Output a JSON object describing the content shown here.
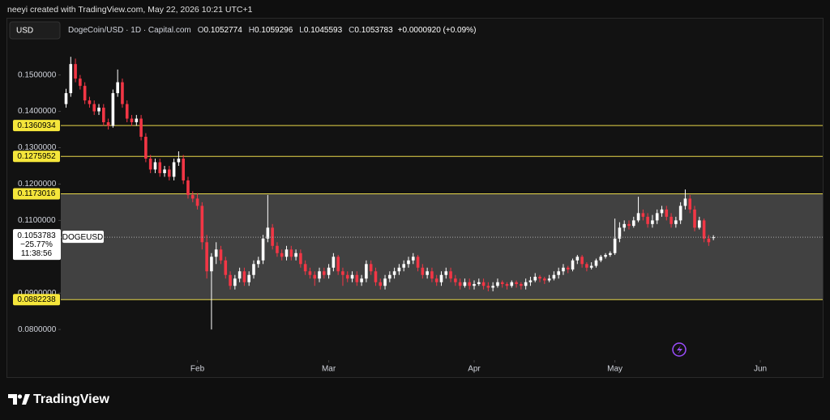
{
  "header": {
    "credit": "neeyi created with TradingView.com, May 22, 2026 10:21 UTC+1",
    "currency": "USD",
    "symbol": "DogeCoin/USD · 1D · Capital.com",
    "ohlc_labels": [
      "O",
      "H",
      "L",
      "C"
    ],
    "change": "+0.0000920 (+0.09%)"
  },
  "footer": {
    "brand": "TradingView"
  },
  "chart_data": {
    "type": "candlestick",
    "up_color": "#ffffff",
    "down_color": "#f23645",
    "level_color": "#e8d84a",
    "ylim": [
      0.0669,
      0.1655
    ],
    "yticks": [
      {
        "value": 0.15,
        "label": "0.1500000"
      },
      {
        "value": 0.14,
        "label": "0.1400000"
      },
      {
        "value": 0.13,
        "label": "0.1300000"
      },
      {
        "value": 0.12,
        "label": "0.1200000"
      },
      {
        "value": 0.11,
        "label": "0.1100000"
      },
      {
        "value": 0.09,
        "label": "0.0900000"
      },
      {
        "value": 0.08,
        "label": "0.0800000"
      }
    ],
    "xlim": [
      -12.7,
      161.3
    ],
    "xticks": [
      {
        "value": 28,
        "label": "Feb"
      },
      {
        "value": 56,
        "label": "Mar"
      },
      {
        "value": 87,
        "label": "Apr"
      },
      {
        "value": 117,
        "label": "May"
      },
      {
        "value": 148,
        "label": "Jun"
      }
    ],
    "grid": false,
    "levels": [
      {
        "value": 0.1360934,
        "label": "0.1360934"
      },
      {
        "value": 0.1275952,
        "label": "0.1275952"
      },
      {
        "value": 0.1173016,
        "label": "0.1173016"
      },
      {
        "value": 0.0882238,
        "label": "0.0882238"
      }
    ],
    "last_price": {
      "symbol": "DOGEUSD",
      "change": "−25.77%",
      "countdown": "11:38:56"
    },
    "open": [
      0.142,
      0.145,
      0.153,
      0.149,
      0.147,
      0.143,
      0.142,
      0.14,
      0.141,
      0.137,
      0.136,
      0.145,
      0.148,
      0.142,
      0.138,
      0.137,
      0.138,
      0.133,
      0.127,
      0.124,
      0.126,
      0.123,
      0.124,
      0.122,
      0.126,
      0.127,
      0.121,
      0.117,
      0.116,
      0.114,
      0.104,
      0.096,
      0.1,
      0.102,
      0.099,
      0.095,
      0.092,
      0.094,
      0.096,
      0.093,
      0.095,
      0.098,
      0.099,
      0.105,
      0.108,
      0.103,
      0.101,
      0.1,
      0.102,
      0.1,
      0.101,
      0.098,
      0.096,
      0.095,
      0.094,
      0.096,
      0.095,
      0.097,
      0.1,
      0.096,
      0.095,
      0.094,
      0.095,
      0.093,
      0.094,
      0.098,
      0.096,
      0.093,
      0.092,
      0.094,
      0.095,
      0.096,
      0.097,
      0.098,
      0.099,
      0.1,
      0.097,
      0.095,
      0.096,
      0.094,
      0.093,
      0.095,
      0.096,
      0.094,
      0.093,
      0.092,
      0.093,
      0.092,
      0.0925,
      0.093,
      0.092,
      0.0915,
      0.092,
      0.093,
      0.0925,
      0.092,
      0.093,
      0.0925,
      0.092,
      0.093,
      0.0935,
      0.0945,
      0.094,
      0.0935,
      0.094,
      0.095,
      0.096,
      0.097,
      0.0965,
      0.099,
      0.1,
      0.098,
      0.097,
      0.0975,
      0.099,
      0.1,
      0.1005,
      0.101,
      0.105,
      0.108,
      0.109,
      0.1085,
      0.11,
      0.112,
      0.111,
      0.109,
      0.11,
      0.112,
      0.113,
      0.111,
      0.109,
      0.11,
      0.114,
      0.116,
      0.113,
      0.108,
      0.11,
      0.105,
      0.1052774
    ],
    "high": [
      0.1462,
      0.155,
      0.1545,
      0.15,
      0.148,
      0.144,
      0.143,
      0.142,
      0.142,
      0.138,
      0.146,
      0.1515,
      0.149,
      0.143,
      0.139,
      0.139,
      0.139,
      0.134,
      0.128,
      0.127,
      0.127,
      0.125,
      0.125,
      0.127,
      0.129,
      0.128,
      0.122,
      0.118,
      0.1175,
      0.115,
      0.106,
      0.101,
      0.104,
      0.103,
      0.1,
      0.096,
      0.095,
      0.097,
      0.097,
      0.096,
      0.099,
      0.1,
      0.106,
      0.117,
      0.109,
      0.104,
      0.102,
      0.103,
      0.103,
      0.102,
      0.102,
      0.099,
      0.097,
      0.096,
      0.097,
      0.097,
      0.098,
      0.101,
      0.1005,
      0.097,
      0.096,
      0.096,
      0.096,
      0.095,
      0.099,
      0.099,
      0.097,
      0.094,
      0.095,
      0.096,
      0.097,
      0.098,
      0.099,
      0.1,
      0.101,
      0.1005,
      0.098,
      0.097,
      0.097,
      0.095,
      0.096,
      0.097,
      0.097,
      0.095,
      0.094,
      0.094,
      0.094,
      0.0935,
      0.094,
      0.094,
      0.093,
      0.093,
      0.094,
      0.0935,
      0.093,
      0.0935,
      0.0935,
      0.093,
      0.094,
      0.0945,
      0.0955,
      0.095,
      0.0945,
      0.095,
      0.096,
      0.097,
      0.098,
      0.0975,
      0.0995,
      0.1005,
      0.1005,
      0.0985,
      0.0985,
      0.0995,
      0.1005,
      0.101,
      0.1015,
      0.1105,
      0.1095,
      0.11,
      0.11,
      0.111,
      0.1165,
      0.113,
      0.112,
      0.1115,
      0.113,
      0.114,
      0.114,
      0.112,
      0.111,
      0.115,
      0.1185,
      0.117,
      0.114,
      0.111,
      0.1105,
      0.106,
      0.1059296
    ],
    "low": [
      0.141,
      0.144,
      0.148,
      0.146,
      0.142,
      0.141,
      0.139,
      0.139,
      0.136,
      0.135,
      0.1355,
      0.144,
      0.141,
      0.137,
      0.136,
      0.136,
      0.132,
      0.126,
      0.123,
      0.123,
      0.122,
      0.122,
      0.121,
      0.121,
      0.125,
      0.12,
      0.116,
      0.115,
      0.113,
      0.102,
      0.094,
      0.08,
      0.098,
      0.098,
      0.094,
      0.091,
      0.091,
      0.093,
      0.092,
      0.092,
      0.094,
      0.097,
      0.098,
      0.104,
      0.102,
      0.1,
      0.099,
      0.099,
      0.099,
      0.099,
      0.097,
      0.095,
      0.094,
      0.092,
      0.093,
      0.094,
      0.094,
      0.096,
      0.095,
      0.092,
      0.093,
      0.093,
      0.092,
      0.092,
      0.093,
      0.095,
      0.092,
      0.091,
      0.091,
      0.093,
      0.094,
      0.095,
      0.096,
      0.097,
      0.098,
      0.096,
      0.094,
      0.094,
      0.093,
      0.092,
      0.092,
      0.094,
      0.093,
      0.092,
      0.091,
      0.0915,
      0.091,
      0.091,
      0.092,
      0.091,
      0.0905,
      0.0905,
      0.0915,
      0.0915,
      0.091,
      0.0915,
      0.0915,
      0.091,
      0.091,
      0.092,
      0.093,
      0.093,
      0.0925,
      0.093,
      0.0935,
      0.094,
      0.095,
      0.0955,
      0.096,
      0.098,
      0.097,
      0.096,
      0.0965,
      0.097,
      0.0985,
      0.0995,
      0.1,
      0.1005,
      0.104,
      0.107,
      0.1075,
      0.108,
      0.1095,
      0.11,
      0.108,
      0.108,
      0.109,
      0.111,
      0.11,
      0.108,
      0.108,
      0.109,
      0.113,
      0.112,
      0.107,
      0.1075,
      0.104,
      0.103,
      0.1045593
    ],
    "close": [
      0.145,
      0.153,
      0.149,
      0.147,
      0.143,
      0.142,
      0.14,
      0.141,
      0.137,
      0.136,
      0.145,
      0.148,
      0.142,
      0.138,
      0.137,
      0.138,
      0.133,
      0.127,
      0.124,
      0.126,
      0.123,
      0.124,
      0.122,
      0.126,
      0.127,
      0.121,
      0.117,
      0.116,
      0.114,
      0.104,
      0.096,
      0.1,
      0.102,
      0.099,
      0.095,
      0.092,
      0.094,
      0.096,
      0.093,
      0.095,
      0.098,
      0.099,
      0.105,
      0.108,
      0.103,
      0.101,
      0.1,
      0.102,
      0.1,
      0.101,
      0.098,
      0.096,
      0.095,
      0.094,
      0.096,
      0.095,
      0.097,
      0.1,
      0.096,
      0.095,
      0.094,
      0.095,
      0.093,
      0.094,
      0.098,
      0.096,
      0.093,
      0.092,
      0.094,
      0.095,
      0.096,
      0.097,
      0.098,
      0.099,
      0.1,
      0.097,
      0.095,
      0.096,
      0.094,
      0.093,
      0.095,
      0.096,
      0.094,
      0.093,
      0.092,
      0.093,
      0.092,
      0.0925,
      0.093,
      0.092,
      0.0915,
      0.092,
      0.093,
      0.0925,
      0.092,
      0.093,
      0.0925,
      0.092,
      0.093,
      0.0935,
      0.0945,
      0.094,
      0.0935,
      0.094,
      0.095,
      0.096,
      0.097,
      0.0965,
      0.099,
      0.1,
      0.098,
      0.097,
      0.0975,
      0.099,
      0.1,
      0.1005,
      0.101,
      0.105,
      0.108,
      0.109,
      0.1085,
      0.11,
      0.112,
      0.111,
      0.109,
      0.11,
      0.112,
      0.113,
      0.111,
      0.109,
      0.11,
      0.114,
      0.116,
      0.113,
      0.108,
      0.11,
      0.105,
      0.104,
      0.1053783
    ]
  }
}
